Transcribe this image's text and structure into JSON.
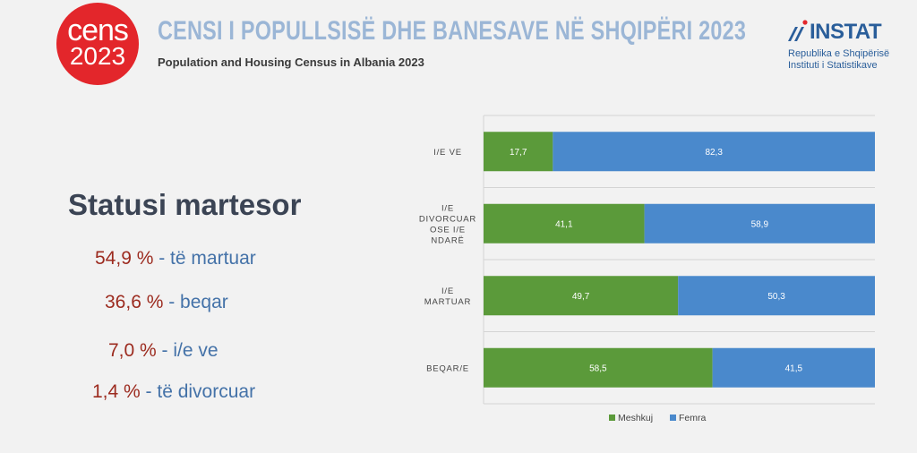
{
  "header": {
    "logo_line1": "cens",
    "logo_line2": "2023",
    "title": "CENSI I POPULLSISË DHE BANESAVE NË SHQIPËRI 2023",
    "subtitle": "Population and Housing Census in Albania 2023",
    "instat": {
      "name": "INSTAT",
      "line1": "Republika e Shqipërisë",
      "line2": "Instituti i Statistikave"
    }
  },
  "panel": {
    "heading": "Statusi martesor",
    "stats": [
      {
        "value": "54,9 %",
        "label": " - të martuar"
      },
      {
        "value": "36,6 %",
        "label": " - beqar"
      },
      {
        "value": "7,0 %",
        "label": " - i/e ve"
      },
      {
        "value": "1,4 %",
        "label": " - të divorcuar"
      }
    ]
  },
  "colors": {
    "meshkuj": "#5b9a3a",
    "femra": "#4a89cc",
    "title": "#9bb6d6",
    "logo": "#e3262b",
    "stat_value": "#9c2b1f",
    "stat_label": "#4472a8"
  },
  "chart_data": {
    "type": "bar",
    "orientation": "horizontal",
    "stacked": true,
    "categories": [
      "I/E VE",
      "I/E DIVORCUAR OSE I/E NDARË",
      "I/E MARTUAR",
      "BEQAR/E"
    ],
    "series": [
      {
        "name": "Meshkuj",
        "values": [
          17.7,
          41.1,
          49.7,
          58.5
        ],
        "labels": [
          "17,7",
          "41,1",
          "49,7",
          "58,5"
        ]
      },
      {
        "name": "Femra",
        "values": [
          82.3,
          58.9,
          50.3,
          41.5
        ],
        "labels": [
          "82,3",
          "58,9",
          "50,3",
          "41,5"
        ]
      }
    ],
    "category_label_lines": [
      [
        "I/E VE"
      ],
      [
        "I/E",
        "DIVORCUAR",
        "OSE I/E",
        "NDARË"
      ],
      [
        "I/E",
        "MARTUAR"
      ],
      [
        "BEQAR/E"
      ]
    ],
    "xlim": [
      0,
      100
    ],
    "grid": true,
    "legend": "bottom"
  }
}
